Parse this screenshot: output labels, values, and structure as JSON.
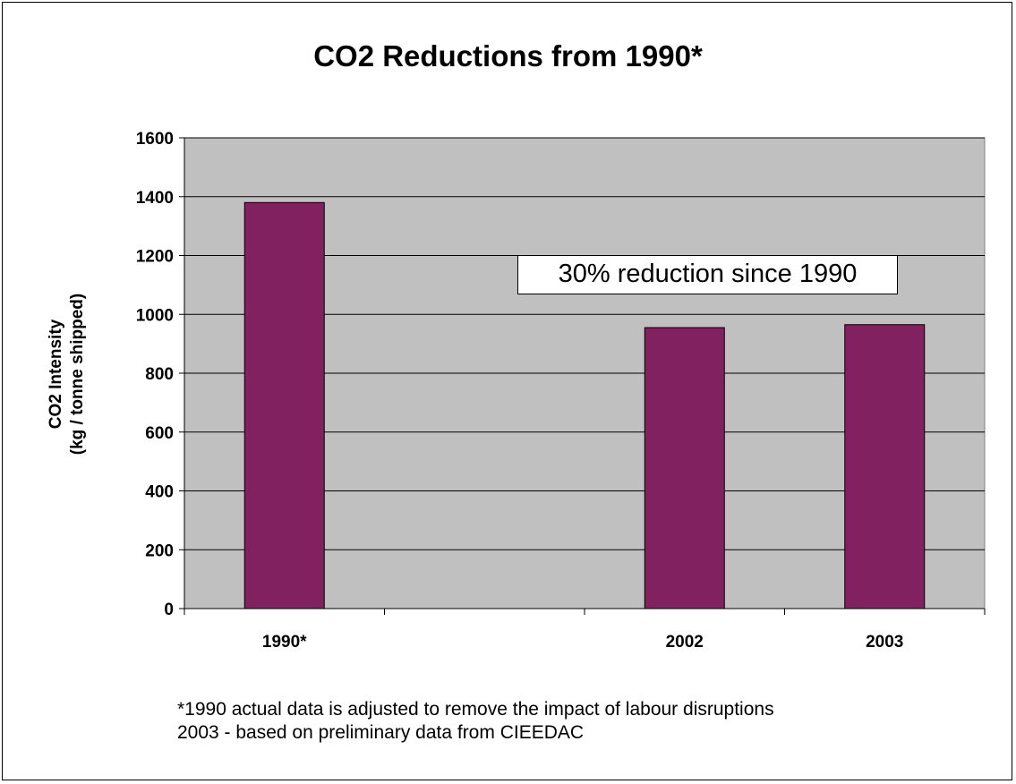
{
  "chart_data": {
    "type": "bar",
    "title": "CO2 Reductions from 1990*",
    "ylabel_lines": [
      "CO2 Intensity",
      "(kg / tonne shipped)"
    ],
    "xlabel": "",
    "categories": [
      "1990*",
      "",
      "2002",
      "2003"
    ],
    "values": [
      1380,
      null,
      955,
      965
    ],
    "ylim": [
      0,
      1600
    ],
    "yticks": [
      0,
      200,
      400,
      600,
      800,
      1000,
      1200,
      1400,
      1600
    ],
    "grid": true,
    "bar_color": "#822160",
    "plot_background": "#c0c0c0",
    "annotation": "30% reduction since 1990"
  },
  "footnotes": [
    "*1990 actual data is adjusted to remove the impact of labour disruptions",
    "2003 - based on preliminary data from CIEEDAC"
  ]
}
